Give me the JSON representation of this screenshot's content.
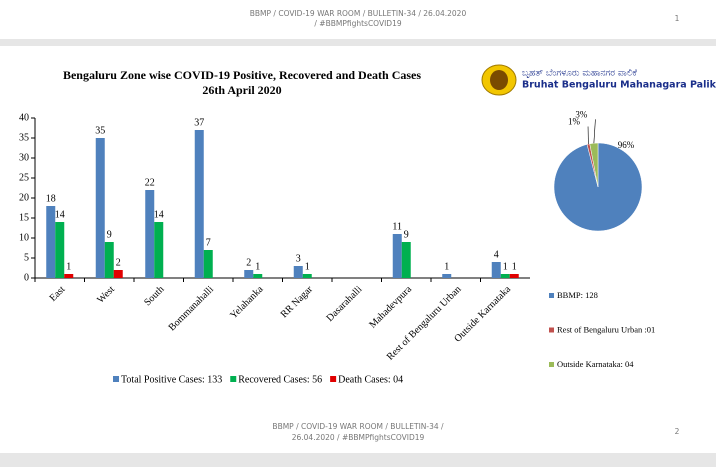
{
  "header": {
    "lines": [
      "BBMP / COVID-19 WAR ROOM / BULLETIN-34 / 26.04.2020",
      "/ #BBMPfightsCOVID19"
    ],
    "page": "1"
  },
  "logo": {
    "kannada": "ಬೃಹತ್ ಬೆಂಗಳೂರು ಮಹಾನಗರ ಪಾಲಿಕೆ",
    "english": "Bruhat Bengaluru Mahanagara Palike"
  },
  "footer": {
    "lines": [
      "BBMP / COVID-19 WAR ROOM / BULLETIN-34 /",
      "26.04.2020 / #BBMPfightsCOVID19"
    ],
    "page": "2"
  },
  "chart_data": [
    {
      "type": "bar",
      "title": "Bengaluru Zone wise COVID-19 Positive, Recovered and Death Cases",
      "subtitle": "26th April 2020",
      "categories": [
        "East",
        "West",
        "South",
        "Bommanahalli",
        "Yelahanka",
        "RR Nagar",
        "Dasarahalli",
        "Mahadevpura",
        "Rest of Bengaluru Urban",
        "Outside Karnataka"
      ],
      "series": [
        {
          "name": "Total Positive Cases: 133",
          "color": "#4f81bd",
          "values": [
            18,
            35,
            22,
            37,
            2,
            3,
            null,
            11,
            1,
            4
          ]
        },
        {
          "name": "Recovered Cases: 56",
          "color": "#00b050",
          "values": [
            14,
            9,
            14,
            7,
            1,
            1,
            null,
            9,
            null,
            1
          ]
        },
        {
          "name": "Death Cases: 04",
          "color": "#e00000",
          "values": [
            1,
            2,
            null,
            null,
            null,
            null,
            null,
            null,
            null,
            1
          ]
        }
      ],
      "ylim": [
        0,
        40
      ],
      "yticks": [
        0,
        5,
        10,
        15,
        20,
        25,
        30,
        35,
        40
      ]
    },
    {
      "type": "pie",
      "categories": [
        "BBMP: 128",
        "Rest of Bengaluru Urban :01",
        "Outside Karnataka: 04"
      ],
      "values": [
        96,
        1,
        3
      ],
      "value_labels": [
        "96%",
        "1%",
        "3%"
      ],
      "colors": [
        "#4f81bd",
        "#c0504d",
        "#9bbb59"
      ]
    }
  ]
}
